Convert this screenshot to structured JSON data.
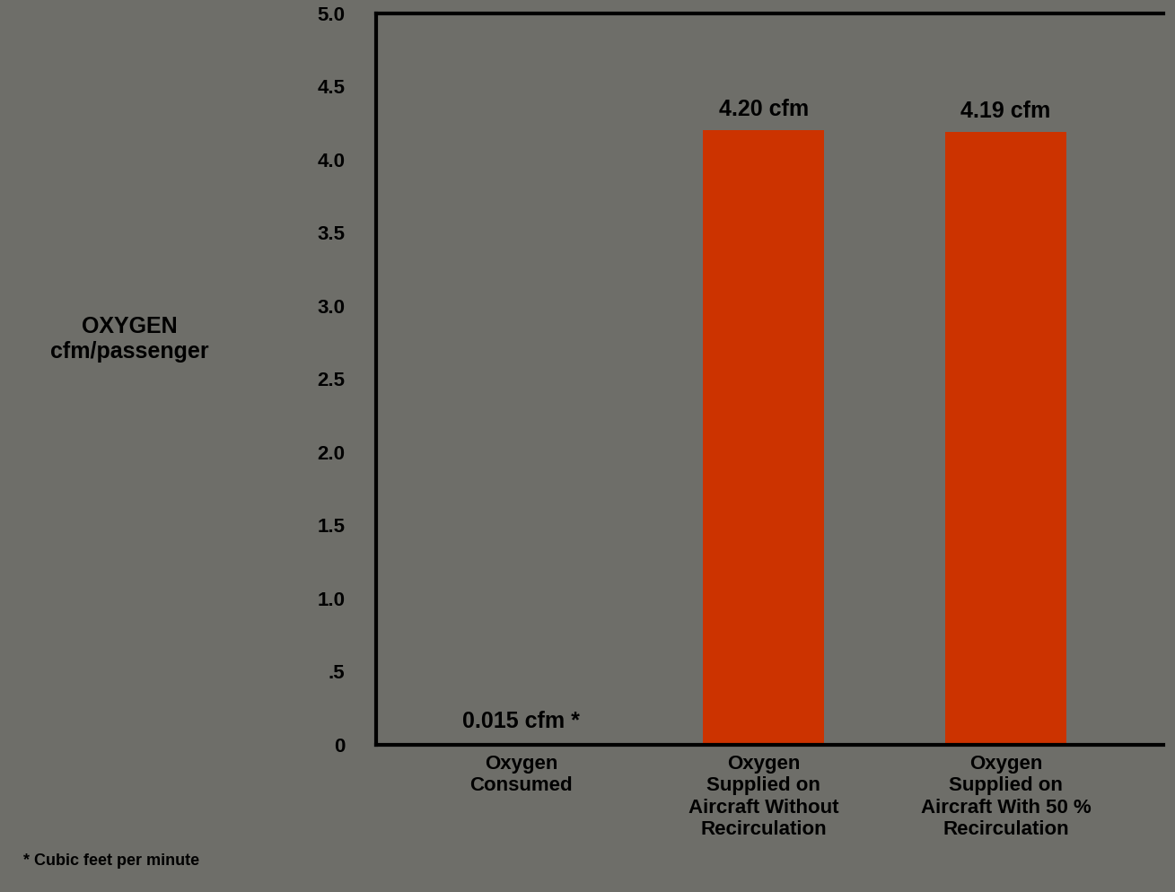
{
  "chart_data": {
    "type": "bar",
    "y_label": "OXYGEN\ncfm/passenger",
    "categories": [
      "Oxygen\nConsumed",
      "Oxygen\nSupplied on\nAircraft Without\nRecirculation",
      "Oxygen\nSupplied on\nAircraft With 50 %\nRecirculation"
    ],
    "values": [
      0.015,
      4.2,
      4.19
    ],
    "value_labels": [
      "0.015 cfm *",
      "4.20 cfm",
      "4.19 cfm"
    ],
    "data_labels": true,
    "color": "#cc3300",
    "ylim": [
      0,
      5.0
    ],
    "yticks": [
      0,
      {
        "value": 0.5,
        "label": ".5"
      },
      {
        "value": 1.0,
        "label": "1.0"
      },
      {
        "value": 1.5,
        "label": "1.5"
      },
      {
        "value": 2.0,
        "label": "2.0"
      },
      {
        "value": 2.5,
        "label": "2.5"
      },
      {
        "value": 3.0,
        "label": "3.0"
      },
      {
        "value": 3.5,
        "label": "3.5"
      },
      {
        "value": 4.0,
        "label": "4.0"
      },
      {
        "value": 4.5,
        "label": "4.5"
      },
      {
        "value": 5.0,
        "label": "5.0"
      }
    ],
    "footnote": "* Cubic feet per minute",
    "grid": false
  }
}
